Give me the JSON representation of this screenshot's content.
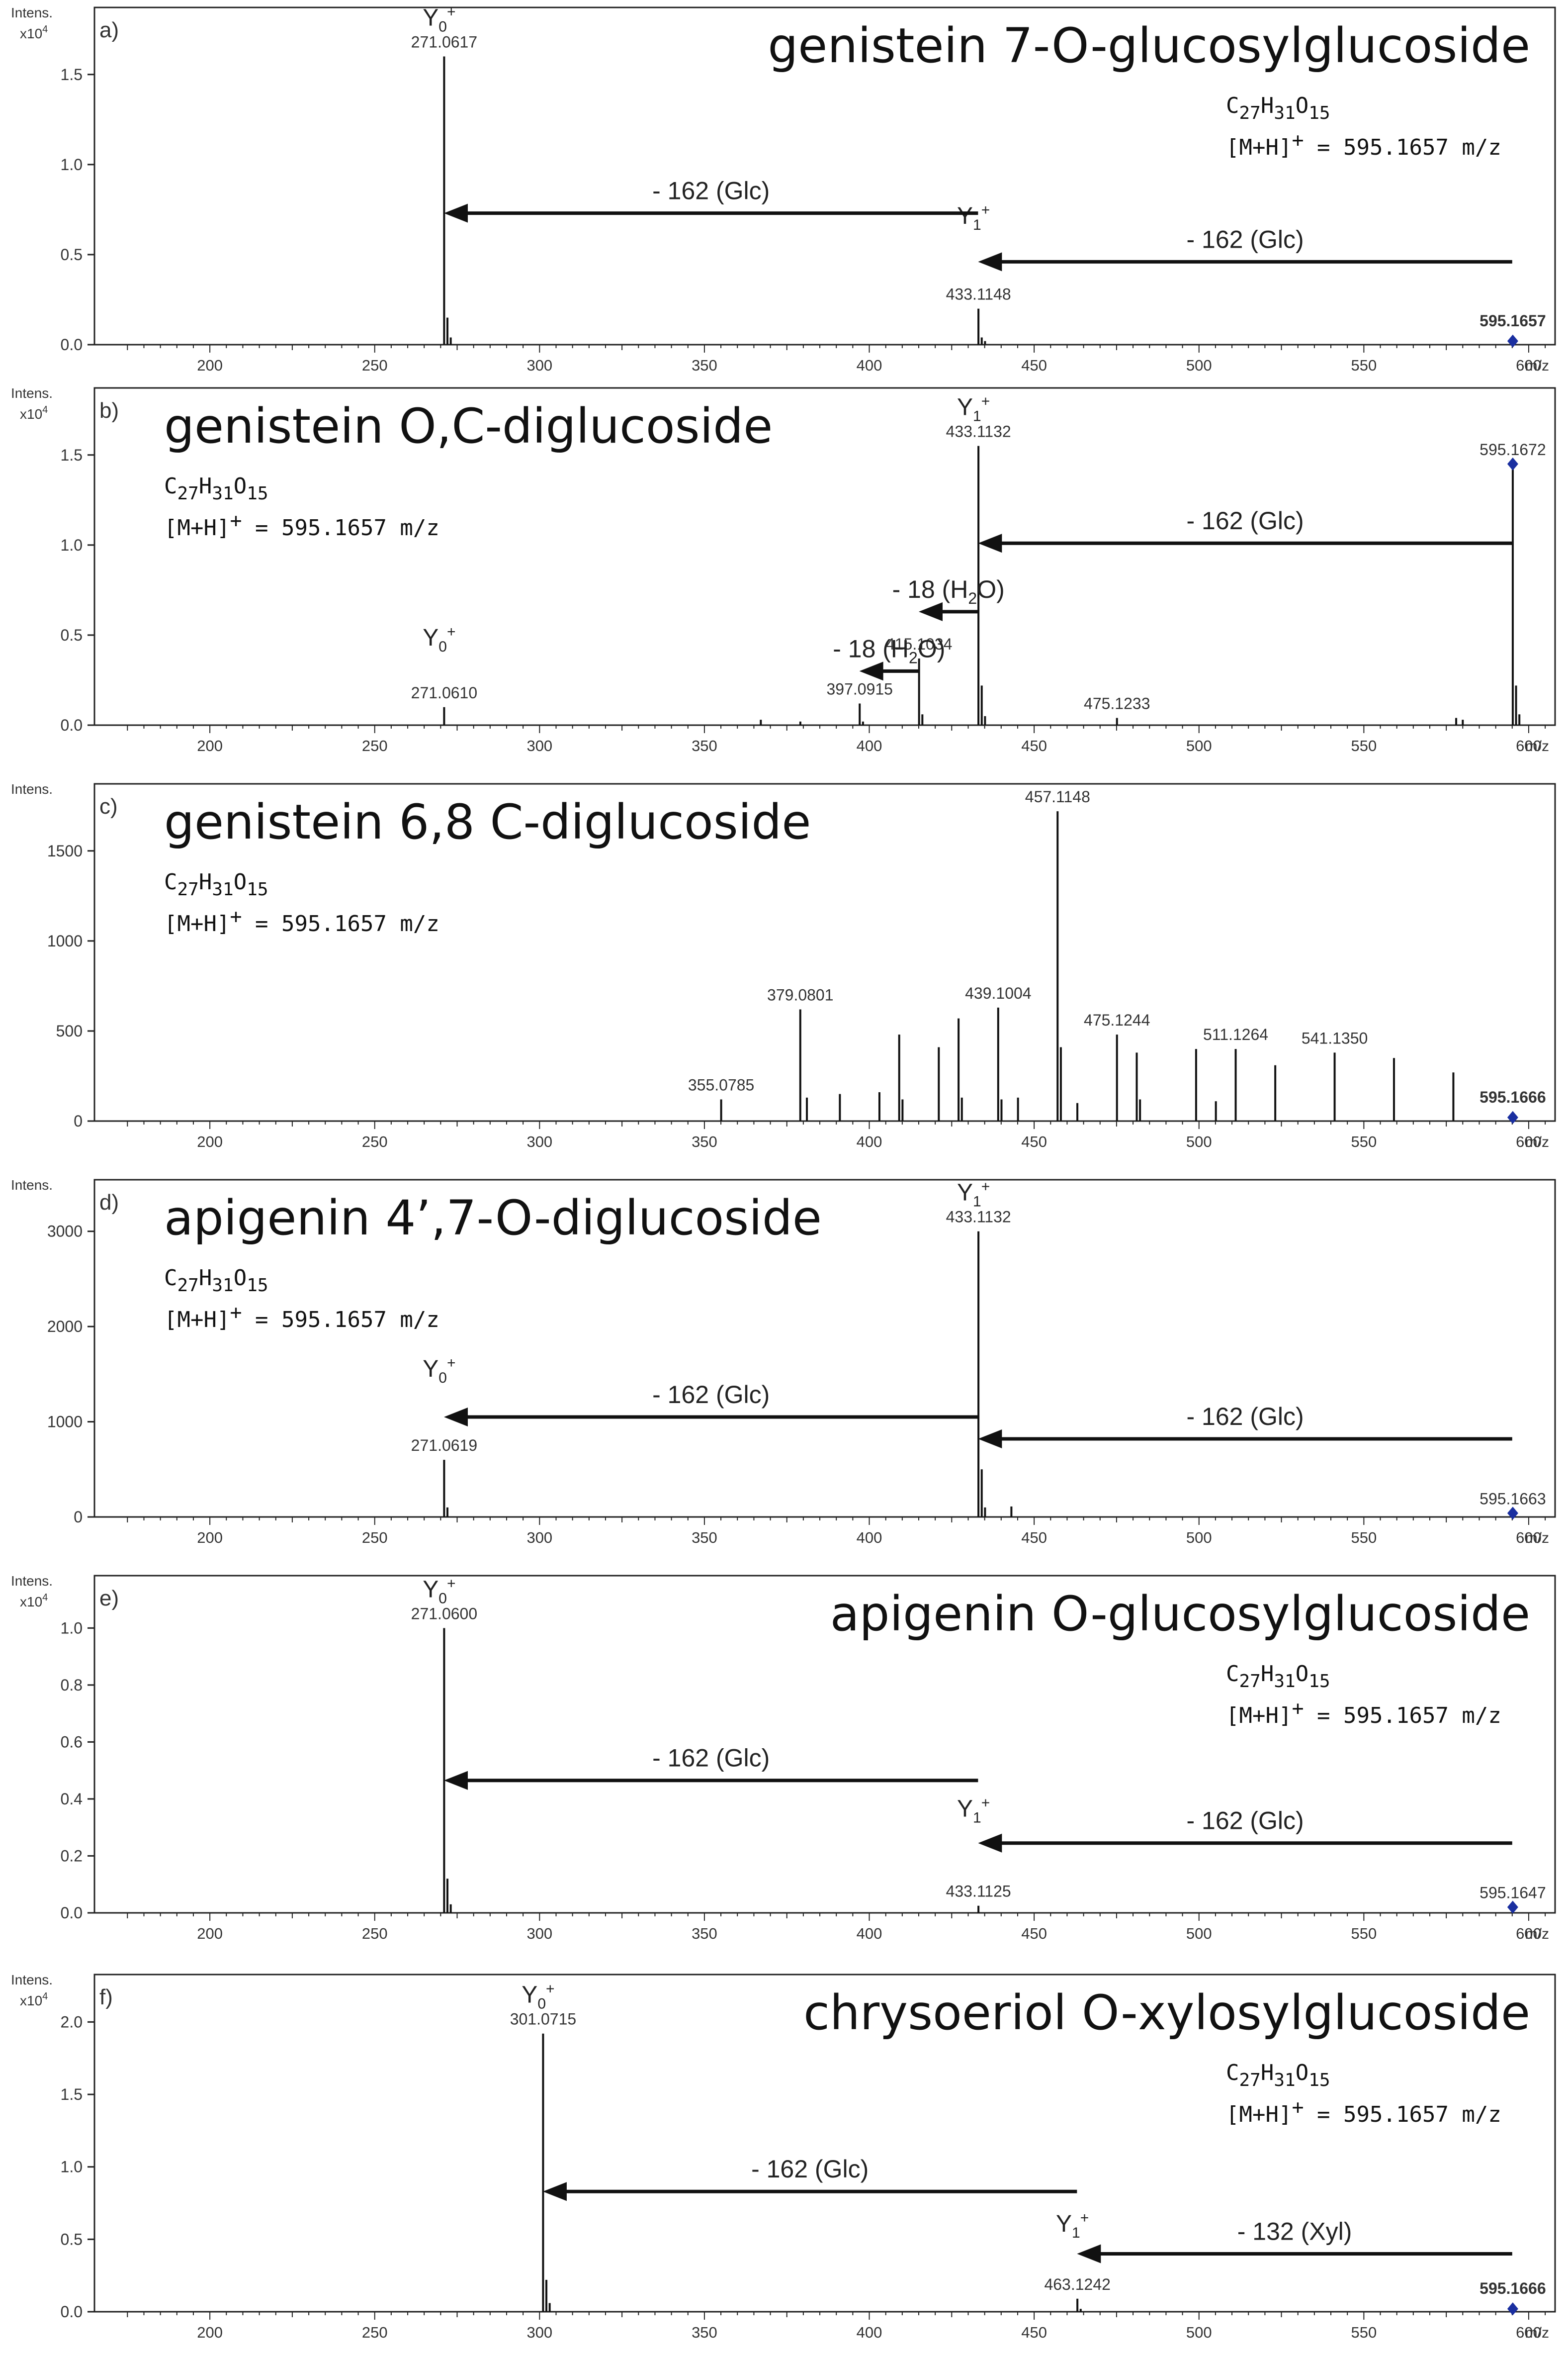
{
  "chart_data": [
    {
      "type": "bar",
      "panel_label": "a)",
      "title": "genistein 7-O-glucosylglucoside",
      "formula": {
        "base": "C",
        "c": "27",
        "h_sym": "H",
        "h": "31",
        "o_sym": "O",
        "o": "15"
      },
      "mh": {
        "prefix": "[M+H]",
        "sup": "+",
        "value": " = 595.1657 m/z"
      },
      "title_align": "right",
      "ylabel": "Intens.",
      "yscale": "x10",
      "yscale_exp": "4",
      "xlabel": "m/z",
      "xlim": [
        165,
        608
      ],
      "ylim": [
        0,
        1.85
      ],
      "x_ticks": [
        200,
        250,
        300,
        350,
        400,
        450,
        500,
        550,
        600
      ],
      "y_ticks": [
        "0.0",
        "0.5",
        "1.0",
        "1.5"
      ],
      "y_tick_values": [
        0,
        0.5,
        1.0,
        1.5
      ],
      "x": [
        271.06,
        272.06,
        273.06,
        433.11,
        434.11,
        435.11,
        595.17
      ],
      "values": [
        1.6,
        0.15,
        0.04,
        0.2,
        0.04,
        0.02,
        0.02
      ],
      "peak_labels": [
        {
          "x": 271.0617,
          "y": 1.6,
          "text": "271.0617"
        },
        {
          "x": 433.1148,
          "y": 0.2,
          "text": "433.1148"
        },
        {
          "x": 595.1657,
          "y": 0.02,
          "text": "595.1657",
          "bold": true
        }
      ],
      "precursor": {
        "x": 595.17,
        "y": 0.02
      },
      "ions": [
        {
          "base": "Y",
          "sub": "0",
          "sup": "+",
          "x": 271.06,
          "y": 1.6
        },
        {
          "base": "Y",
          "sub": "1",
          "sup": "+",
          "x": 433.11,
          "y": 0.5
        }
      ],
      "arrows": [
        {
          "from": 433,
          "to": 271,
          "y": 0.73,
          "label": "- 162 (Glc)"
        },
        {
          "from": 595,
          "to": 433,
          "y": 0.46,
          "label": "- 162 (Glc)"
        }
      ]
    },
    {
      "type": "bar",
      "panel_label": "b)",
      "title": "genistein O,C-diglucoside",
      "formula": {
        "base": "C",
        "c": "27",
        "h_sym": "H",
        "h": "31",
        "o_sym": "O",
        "o": "15"
      },
      "mh": {
        "prefix": "[M+H]",
        "sup": "+",
        "value": " = 595.1657 m/z"
      },
      "title_align": "left",
      "ylabel": "Intens.",
      "yscale": "x10",
      "yscale_exp": "4",
      "xlabel": "m/z",
      "xlim": [
        165,
        608
      ],
      "ylim": [
        0,
        1.85
      ],
      "x_ticks": [
        200,
        250,
        300,
        350,
        400,
        450,
        500,
        550,
        600
      ],
      "y_ticks": [
        "0.0",
        "0.5",
        "1.0",
        "1.5"
      ],
      "y_tick_values": [
        0,
        0.5,
        1.0,
        1.5
      ],
      "x": [
        271.06,
        367.1,
        379.1,
        397.09,
        398.09,
        415.1,
        416.1,
        433.11,
        434.11,
        435.11,
        475.12,
        578.0,
        580.0,
        595.17,
        596.17,
        597.17
      ],
      "values": [
        0.1,
        0.03,
        0.02,
        0.12,
        0.02,
        0.37,
        0.06,
        1.55,
        0.22,
        0.05,
        0.04,
        0.04,
        0.03,
        1.45,
        0.22,
        0.06
      ],
      "peak_labels": [
        {
          "x": 271.061,
          "y": 0.1,
          "text": "271.0610"
        },
        {
          "x": 397.0915,
          "y": 0.12,
          "text": "397.0915"
        },
        {
          "x": 415.1034,
          "y": 0.37,
          "text": "415.1034"
        },
        {
          "x": 433.1132,
          "y": 1.55,
          "text": "433.1132"
        },
        {
          "x": 475.1233,
          "y": 0.04,
          "text": "475.1233"
        },
        {
          "x": 595.1672,
          "y": 1.45,
          "text": "595.1672"
        }
      ],
      "precursor": {
        "x": 595.17,
        "y": 1.45
      },
      "ions": [
        {
          "base": "Y",
          "sub": "0",
          "sup": "+",
          "x": 271.06,
          "y": 0.27
        },
        {
          "base": "Y",
          "sub": "1",
          "sup": "+",
          "x": 433.11,
          "y": 1.55
        }
      ],
      "arrows": [
        {
          "from": 595,
          "to": 433,
          "y": 1.01,
          "label": "- 162 (Glc)"
        },
        {
          "from": 433,
          "to": 415,
          "y": 0.63,
          "label": "- 18 (H",
          "label_sub": "2",
          "label_tail": "O)"
        },
        {
          "from": 415,
          "to": 397,
          "y": 0.3,
          "label": "- 18 (H",
          "label_sub": "2",
          "label_tail": "O)"
        }
      ]
    },
    {
      "type": "bar",
      "panel_label": "c)",
      "title": "genistein 6,8 C-diglucoside",
      "formula": {
        "base": "C",
        "c": "27",
        "h_sym": "H",
        "h": "31",
        "o_sym": "O",
        "o": "15"
      },
      "mh": {
        "prefix": "[M+H]",
        "sup": "+",
        "value": " = 595.1657 m/z"
      },
      "title_align": "left",
      "ylabel": "Intens.",
      "yscale": "",
      "yscale_exp": "",
      "xlabel": "m/z",
      "xlim": [
        165,
        608
      ],
      "ylim": [
        0,
        1850
      ],
      "x_ticks": [
        200,
        250,
        300,
        350,
        400,
        450,
        500,
        550,
        600
      ],
      "y_ticks": [
        "0",
        "500",
        "1000",
        "1500"
      ],
      "y_tick_values": [
        0,
        500,
        1000,
        1500
      ],
      "x": [
        355.08,
        379.08,
        381.08,
        391.08,
        403.08,
        409.08,
        410.08,
        421.08,
        427.08,
        428.08,
        439.1,
        440.1,
        445.1,
        457.11,
        458.11,
        463.11,
        475.12,
        481.12,
        482.12,
        499.12,
        505.12,
        511.13,
        523.13,
        541.14,
        559.14,
        577.15,
        595.17
      ],
      "values": [
        120,
        620,
        130,
        150,
        160,
        480,
        120,
        410,
        570,
        130,
        630,
        120,
        130,
        1720,
        410,
        100,
        480,
        380,
        120,
        400,
        110,
        400,
        310,
        380,
        350,
        270,
        20
      ],
      "peak_labels": [
        {
          "x": 355.0785,
          "y": 120,
          "text": "355.0785"
        },
        {
          "x": 379.0801,
          "y": 620,
          "text": "379.0801"
        },
        {
          "x": 439.1004,
          "y": 630,
          "text": "439.1004"
        },
        {
          "x": 457.1148,
          "y": 1720,
          "text": "457.1148"
        },
        {
          "x": 475.1244,
          "y": 480,
          "text": "475.1244"
        },
        {
          "x": 511.1264,
          "y": 400,
          "text": "511.1264"
        },
        {
          "x": 541.135,
          "y": 380,
          "text": "541.1350"
        },
        {
          "x": 595.1666,
          "y": 20,
          "text": "595.1666",
          "bold": true
        }
      ],
      "precursor": {
        "x": 595.17,
        "y": 20
      },
      "ions": [],
      "arrows": []
    },
    {
      "type": "bar",
      "panel_label": "d)",
      "title": "apigenin 4’,7-O-diglucoside",
      "formula": {
        "base": "C",
        "c": "27",
        "h_sym": "H",
        "h": "31",
        "o_sym": "O",
        "o": "15"
      },
      "mh": {
        "prefix": "[M+H]",
        "sup": "+",
        "value": " = 595.1657 m/z"
      },
      "title_align": "left",
      "ylabel": "Intens.",
      "yscale": "",
      "yscale_exp": "",
      "xlabel": "m/z",
      "xlim": [
        165,
        608
      ],
      "ylim": [
        0,
        3500
      ],
      "x_ticks": [
        200,
        250,
        300,
        350,
        400,
        450,
        500,
        550,
        600
      ],
      "y_ticks": [
        "0",
        "1000",
        "2000",
        "3000"
      ],
      "y_tick_values": [
        0,
        1000,
        2000,
        3000
      ],
      "x": [
        271.06,
        272.06,
        433.11,
        434.11,
        435.11,
        443.1,
        595.17
      ],
      "values": [
        600,
        100,
        3000,
        500,
        100,
        110,
        40
      ],
      "peak_labels": [
        {
          "x": 271.0619,
          "y": 600,
          "text": "271.0619"
        },
        {
          "x": 433.1132,
          "y": 3000,
          "text": "433.1132"
        },
        {
          "x": 595.1663,
          "y": 40,
          "text": "595.1663"
        }
      ],
      "precursor": {
        "x": 595.17,
        "y": 40
      },
      "ions": [
        {
          "base": "Y",
          "sub": "0",
          "sup": "+",
          "x": 271.06,
          "y": 1150
        },
        {
          "base": "Y",
          "sub": "1",
          "sup": "+",
          "x": 433.11,
          "y": 3000
        }
      ],
      "arrows": [
        {
          "from": 433,
          "to": 271,
          "y": 1050,
          "label": "- 162 (Glc)"
        },
        {
          "from": 595,
          "to": 433,
          "y": 820,
          "label": "- 162 (Glc)"
        }
      ]
    },
    {
      "type": "bar",
      "panel_label": "e)",
      "title": "apigenin O-glucosylglucoside",
      "formula": {
        "base": "C",
        "c": "27",
        "h_sym": "H",
        "h": "31",
        "o_sym": "O",
        "o": "15"
      },
      "mh": {
        "prefix": "[M+H]",
        "sup": "+",
        "value": " = 595.1657 m/z"
      },
      "title_align": "right",
      "ylabel": "Intens.",
      "yscale": "x10",
      "yscale_exp": "4",
      "xlabel": "m/z",
      "xlim": [
        165,
        608
      ],
      "ylim": [
        0,
        1.17
      ],
      "x_ticks": [
        200,
        250,
        300,
        350,
        400,
        450,
        500,
        550,
        600
      ],
      "y_ticks": [
        "0.0",
        "0.2",
        "0.4",
        "0.6",
        "0.8",
        "1.0"
      ],
      "y_tick_values": [
        0,
        0.2,
        0.4,
        0.6,
        0.8,
        1.0
      ],
      "x": [
        271.06,
        272.06,
        273.06,
        433.11,
        595.16
      ],
      "values": [
        1.0,
        0.12,
        0.03,
        0.025,
        0.02
      ],
      "peak_labels": [
        {
          "x": 271.06,
          "y": 1.0,
          "text": "271.0600"
        },
        {
          "x": 433.1125,
          "y": 0.025,
          "text": "433.1125"
        },
        {
          "x": 595.1647,
          "y": 0.02,
          "text": "595.1647"
        }
      ],
      "precursor": {
        "x": 595.16,
        "y": 0.02
      },
      "ions": [
        {
          "base": "Y",
          "sub": "0",
          "sup": "+",
          "x": 271.06,
          "y": 1.0
        },
        {
          "base": "Y",
          "sub": "1",
          "sup": "+",
          "x": 433.11,
          "y": 0.23
        }
      ],
      "arrows": [
        {
          "from": 433,
          "to": 271,
          "y": 0.465,
          "label": "- 162 (Glc)"
        },
        {
          "from": 595,
          "to": 433,
          "y": 0.245,
          "label": "- 162 (Glc)"
        }
      ]
    },
    {
      "type": "bar",
      "panel_label": "f)",
      "title": "chrysoeriol O-xylosylglucoside",
      "formula": {
        "base": "C",
        "c": "27",
        "h_sym": "H",
        "h": "31",
        "o_sym": "O",
        "o": "15"
      },
      "mh": {
        "prefix": "[M+H]",
        "sup": "+",
        "value": " = 595.1657 m/z"
      },
      "title_align": "right",
      "ylabel": "Intens.",
      "yscale": "x10",
      "yscale_exp": "4",
      "xlabel": "m/z",
      "xlim": [
        165,
        608
      ],
      "ylim": [
        0,
        2.3
      ],
      "x_ticks": [
        200,
        250,
        300,
        350,
        400,
        450,
        500,
        550,
        600
      ],
      "y_ticks": [
        "0.0",
        "0.5",
        "1.0",
        "1.5",
        "2.0"
      ],
      "y_tick_values": [
        0,
        0.5,
        1.0,
        1.5,
        2.0
      ],
      "x": [
        301.07,
        302.07,
        303.07,
        463.12,
        464.12,
        595.17
      ],
      "values": [
        1.92,
        0.22,
        0.06,
        0.09,
        0.02,
        0.02
      ],
      "peak_labels": [
        {
          "x": 301.0715,
          "y": 1.92,
          "text": "301.0715"
        },
        {
          "x": 463.1242,
          "y": 0.09,
          "text": "463.1242"
        },
        {
          "x": 595.1666,
          "y": 0.02,
          "text": "595.1666",
          "bold": true
        }
      ],
      "precursor": {
        "x": 595.17,
        "y": 0.02
      },
      "ions": [
        {
          "base": "Y",
          "sub": "0",
          "sup": "+",
          "x": 301.07,
          "y": 1.92
        },
        {
          "base": "Y",
          "sub": "1",
          "sup": "+",
          "x": 463.12,
          "y": 0.34
        }
      ],
      "arrows": [
        {
          "from": 463,
          "to": 301,
          "y": 0.83,
          "label": "- 162 (Glc)"
        },
        {
          "from": 595,
          "to": 463,
          "y": 0.4,
          "label": "- 132 (Xyl)"
        }
      ]
    }
  ]
}
